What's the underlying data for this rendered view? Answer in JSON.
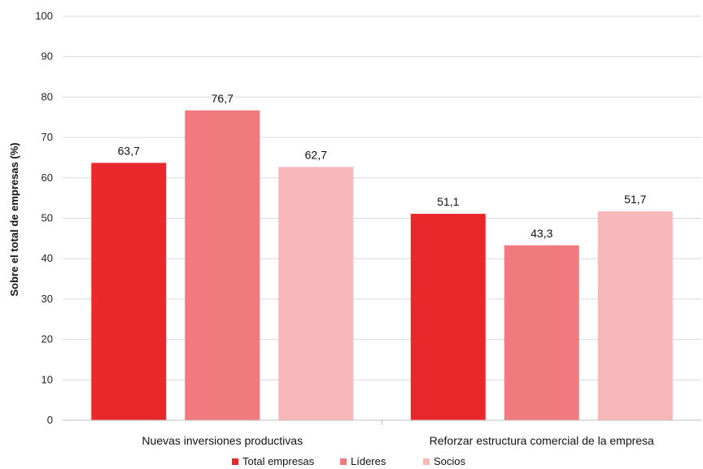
{
  "chart_data": {
    "type": "bar",
    "categories": [
      "Nuevas inversiones productivas",
      "Reforzar estructura comercial de la empresa"
    ],
    "series": [
      {
        "name": "Total empresas",
        "values": [
          63.7,
          51.1
        ],
        "labels": [
          "63,7",
          "51,1"
        ],
        "color": "#e8282b"
      },
      {
        "name": "Líderes",
        "values": [
          76.7,
          43.3
        ],
        "labels": [
          "76,7",
          "43,3"
        ],
        "color": "#f07a7d"
      },
      {
        "name": "Socios",
        "values": [
          62.7,
          51.7
        ],
        "labels": [
          "62,7",
          "51,7"
        ],
        "color": "#f8b8ba"
      }
    ],
    "ylabel": "Sobre el total de empresas (%)",
    "ylim": [
      0,
      100
    ],
    "yticks": [
      0,
      10,
      20,
      30,
      40,
      50,
      60,
      70,
      80,
      90,
      100
    ],
    "grid": true,
    "legend_position": "bottom"
  }
}
